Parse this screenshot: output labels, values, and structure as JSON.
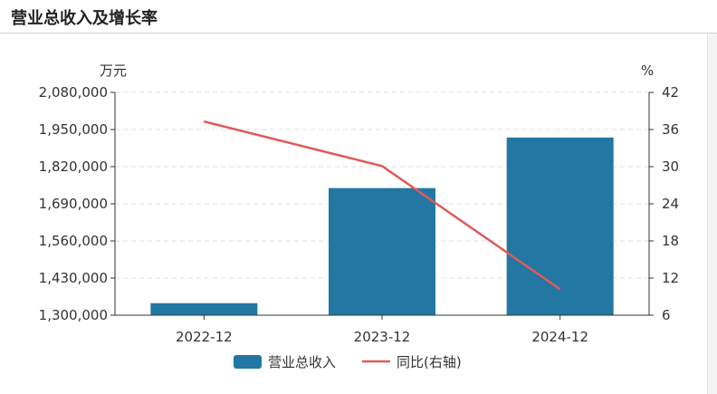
{
  "header": {
    "title": "营业总收入及增长率"
  },
  "chart_data": {
    "type": "bar",
    "categories": [
      "2022-12",
      "2023-12",
      "2024-12"
    ],
    "series": [
      {
        "name": "营业总收入",
        "type": "bar",
        "axis": "left",
        "values": [
          1342000,
          1745000,
          1922000
        ]
      },
      {
        "name": "同比(右轴)",
        "type": "line",
        "axis": "right",
        "values": [
          37.3,
          30.1,
          10.2
        ]
      }
    ],
    "left_axis": {
      "unit": "万元",
      "ylim": [
        1300000,
        2080000
      ],
      "ticks": [
        1300000,
        1430000,
        1560000,
        1690000,
        1820000,
        1950000,
        2080000
      ],
      "tick_labels": [
        "1,300,000",
        "1,430,000",
        "1,560,000",
        "1,690,000",
        "1,820,000",
        "1,950,000",
        "2,080,000"
      ]
    },
    "right_axis": {
      "unit": "%",
      "ylim": [
        6,
        42
      ],
      "ticks": [
        6,
        12,
        18,
        24,
        30,
        36,
        42
      ],
      "tick_labels": [
        "6",
        "12",
        "18",
        "24",
        "30",
        "36",
        "42"
      ]
    },
    "grid": true,
    "legend": "bottom-center",
    "colors": {
      "bar": "#2277a3",
      "line": "#e05a5a",
      "grid": "#dddddd",
      "axis": "#333333"
    }
  }
}
